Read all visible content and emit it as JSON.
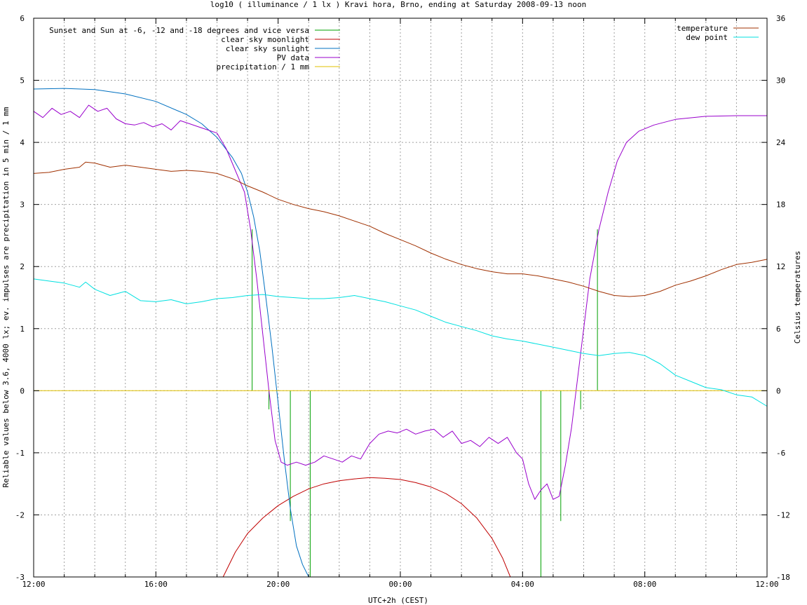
{
  "chart_data": {
    "type": "line",
    "title": "log10 ( illuminance / 1 lx ) Kravi hora, Brno, ending at Saturday 2008-09-13 noon",
    "xlabel": "UTC+2h (CEST)",
    "ylabel": "Reliable values below 3.6, 4000 lx; ev. impulses are precipitation in 5 min / 1 mm",
    "y2label": "Celsius temperatures",
    "x_unit": "hours since 12:00",
    "xlim": [
      0,
      24
    ],
    "ylim": [
      -3,
      6
    ],
    "y2lim": [
      -18,
      36
    ],
    "grid": true,
    "x_ticks": [
      {
        "x": 0,
        "label": "12:00"
      },
      {
        "x": 4,
        "label": "16:00"
      },
      {
        "x": 8,
        "label": "20:00"
      },
      {
        "x": 12,
        "label": "00:00"
      },
      {
        "x": 16,
        "label": "04:00"
      },
      {
        "x": 20,
        "label": "08:00"
      },
      {
        "x": 24,
        "label": "12:00"
      }
    ],
    "y_ticks": [
      {
        "v": -3,
        "label": "-3"
      },
      {
        "v": -2,
        "label": "-2"
      },
      {
        "v": -1,
        "label": "-1"
      },
      {
        "v": 0,
        "label": "0"
      },
      {
        "v": 1,
        "label": "1"
      },
      {
        "v": 2,
        "label": "2"
      },
      {
        "v": 3,
        "label": "3"
      },
      {
        "v": 4,
        "label": "4"
      },
      {
        "v": 5,
        "label": "5"
      },
      {
        "v": 6,
        "label": "6"
      }
    ],
    "y2_ticks": [
      {
        "v": -18,
        "label": "-18"
      },
      {
        "v": -12,
        "label": "-12"
      },
      {
        "v": -6,
        "label": "-6"
      },
      {
        "v": 0,
        "label": "0"
      },
      {
        "v": 6,
        "label": "6"
      },
      {
        "v": 12,
        "label": "12"
      },
      {
        "v": 18,
        "label": "18"
      },
      {
        "v": 24,
        "label": "24"
      },
      {
        "v": 30,
        "label": "30"
      },
      {
        "v": 36,
        "label": "36"
      }
    ],
    "series": [
      {
        "name": "Sunset and Sun at -6, -12 and -18 degrees and vice versa",
        "color": "#00a000",
        "kind": "impulse",
        "axis": "y",
        "points": [
          {
            "x": 7.15,
            "y": 2.6
          },
          {
            "x": 7.7,
            "y": -0.3
          },
          {
            "x": 8.4,
            "y": -2.1
          },
          {
            "x": 9.05,
            "y": -3.0
          },
          {
            "x": 16.6,
            "y": -3.0
          },
          {
            "x": 17.25,
            "y": -2.1
          },
          {
            "x": 17.9,
            "y": -0.3
          },
          {
            "x": 18.45,
            "y": 2.6
          }
        ]
      },
      {
        "name": "clear sky moonlight",
        "color": "#c00000",
        "kind": "line",
        "axis": "y",
        "points": [
          [
            6.2,
            -3.0
          ],
          [
            6.6,
            -2.6
          ],
          [
            7.0,
            -2.3
          ],
          [
            7.5,
            -2.05
          ],
          [
            8.0,
            -1.85
          ],
          [
            8.5,
            -1.7
          ],
          [
            9.0,
            -1.58
          ],
          [
            9.5,
            -1.5
          ],
          [
            10.0,
            -1.45
          ],
          [
            10.5,
            -1.42
          ],
          [
            11.0,
            -1.4
          ],
          [
            11.5,
            -1.41
          ],
          [
            12.0,
            -1.43
          ],
          [
            12.5,
            -1.48
          ],
          [
            13.0,
            -1.55
          ],
          [
            13.5,
            -1.66
          ],
          [
            14.0,
            -1.82
          ],
          [
            14.5,
            -2.05
          ],
          [
            15.0,
            -2.38
          ],
          [
            15.35,
            -2.7
          ],
          [
            15.6,
            -3.0
          ]
        ]
      },
      {
        "name": "clear sky sunlight",
        "color": "#0070c0",
        "kind": "line",
        "axis": "y",
        "points": [
          [
            0.0,
            4.86
          ],
          [
            1.0,
            4.87
          ],
          [
            2.0,
            4.85
          ],
          [
            3.0,
            4.78
          ],
          [
            4.0,
            4.66
          ],
          [
            5.0,
            4.45
          ],
          [
            5.5,
            4.3
          ],
          [
            6.0,
            4.08
          ],
          [
            6.5,
            3.76
          ],
          [
            6.8,
            3.5
          ],
          [
            7.0,
            3.2
          ],
          [
            7.2,
            2.8
          ],
          [
            7.4,
            2.25
          ],
          [
            7.6,
            1.5
          ],
          [
            7.8,
            0.7
          ],
          [
            8.0,
            -0.2
          ],
          [
            8.2,
            -1.1
          ],
          [
            8.4,
            -1.9
          ],
          [
            8.6,
            -2.5
          ],
          [
            8.8,
            -2.8
          ],
          [
            9.0,
            -3.0
          ]
        ]
      },
      {
        "name": "PV data",
        "color": "#9900cc",
        "kind": "line",
        "axis": "y",
        "points": [
          [
            0.0,
            4.5
          ],
          [
            0.3,
            4.4
          ],
          [
            0.6,
            4.55
          ],
          [
            0.9,
            4.45
          ],
          [
            1.2,
            4.5
          ],
          [
            1.5,
            4.4
          ],
          [
            1.8,
            4.6
          ],
          [
            2.1,
            4.5
          ],
          [
            2.4,
            4.55
          ],
          [
            2.7,
            4.38
          ],
          [
            3.0,
            4.3
          ],
          [
            3.3,
            4.28
          ],
          [
            3.6,
            4.32
          ],
          [
            3.9,
            4.25
          ],
          [
            4.2,
            4.3
          ],
          [
            4.5,
            4.2
          ],
          [
            4.8,
            4.35
          ],
          [
            5.1,
            4.3
          ],
          [
            5.4,
            4.25
          ],
          [
            5.7,
            4.2
          ],
          [
            6.0,
            4.15
          ],
          [
            6.3,
            3.9
          ],
          [
            6.6,
            3.55
          ],
          [
            6.9,
            3.2
          ],
          [
            7.1,
            2.6
          ],
          [
            7.3,
            1.8
          ],
          [
            7.5,
            0.9
          ],
          [
            7.7,
            0.0
          ],
          [
            7.9,
            -0.8
          ],
          [
            8.1,
            -1.15
          ],
          [
            8.3,
            -1.2
          ],
          [
            8.6,
            -1.15
          ],
          [
            8.9,
            -1.2
          ],
          [
            9.2,
            -1.15
          ],
          [
            9.5,
            -1.05
          ],
          [
            9.8,
            -1.1
          ],
          [
            10.1,
            -1.15
          ],
          [
            10.4,
            -1.05
          ],
          [
            10.7,
            -1.1
          ],
          [
            11.0,
            -0.85
          ],
          [
            11.3,
            -0.7
          ],
          [
            11.6,
            -0.65
          ],
          [
            11.9,
            -0.68
          ],
          [
            12.2,
            -0.62
          ],
          [
            12.5,
            -0.7
          ],
          [
            12.8,
            -0.65
          ],
          [
            13.1,
            -0.62
          ],
          [
            13.4,
            -0.75
          ],
          [
            13.7,
            -0.65
          ],
          [
            14.0,
            -0.85
          ],
          [
            14.3,
            -0.8
          ],
          [
            14.6,
            -0.9
          ],
          [
            14.9,
            -0.75
          ],
          [
            15.2,
            -0.85
          ],
          [
            15.5,
            -0.75
          ],
          [
            15.8,
            -1.0
          ],
          [
            16.0,
            -1.1
          ],
          [
            16.2,
            -1.5
          ],
          [
            16.4,
            -1.75
          ],
          [
            16.6,
            -1.6
          ],
          [
            16.8,
            -1.5
          ],
          [
            17.0,
            -1.75
          ],
          [
            17.2,
            -1.7
          ],
          [
            17.4,
            -1.2
          ],
          [
            17.6,
            -0.6
          ],
          [
            17.8,
            0.2
          ],
          [
            18.0,
            1.0
          ],
          [
            18.2,
            1.8
          ],
          [
            18.5,
            2.6
          ],
          [
            18.8,
            3.2
          ],
          [
            19.1,
            3.7
          ],
          [
            19.4,
            4.0
          ],
          [
            19.8,
            4.18
          ],
          [
            20.3,
            4.28
          ],
          [
            21.0,
            4.37
          ],
          [
            22.0,
            4.42
          ],
          [
            23.0,
            4.43
          ],
          [
            24.0,
            4.43
          ]
        ]
      },
      {
        "name": "precipitation / 1 mm",
        "color": "#e0c000",
        "kind": "line",
        "axis": "y",
        "points": [
          [
            0.0,
            0.0
          ],
          [
            24.0,
            0.0
          ]
        ]
      },
      {
        "name": "temperature",
        "color": "#a03000",
        "kind": "line",
        "axis": "y2",
        "points": [
          [
            0.0,
            21.0
          ],
          [
            0.5,
            21.1
          ],
          [
            1.0,
            21.4
          ],
          [
            1.5,
            21.6
          ],
          [
            1.7,
            22.1
          ],
          [
            2.0,
            22.0
          ],
          [
            2.5,
            21.6
          ],
          [
            3.0,
            21.8
          ],
          [
            3.5,
            21.6
          ],
          [
            4.0,
            21.4
          ],
          [
            4.5,
            21.2
          ],
          [
            5.0,
            21.3
          ],
          [
            5.5,
            21.2
          ],
          [
            6.0,
            21.0
          ],
          [
            6.5,
            20.5
          ],
          [
            7.0,
            19.8
          ],
          [
            7.5,
            19.2
          ],
          [
            8.0,
            18.5
          ],
          [
            8.5,
            18.0
          ],
          [
            9.0,
            17.6
          ],
          [
            9.5,
            17.3
          ],
          [
            10.0,
            16.9
          ],
          [
            10.5,
            16.4
          ],
          [
            11.0,
            15.9
          ],
          [
            11.5,
            15.2
          ],
          [
            12.0,
            14.6
          ],
          [
            12.5,
            14.0
          ],
          [
            13.0,
            13.3
          ],
          [
            13.5,
            12.7
          ],
          [
            14.0,
            12.2
          ],
          [
            14.5,
            11.8
          ],
          [
            15.0,
            11.5
          ],
          [
            15.5,
            11.3
          ],
          [
            16.0,
            11.3
          ],
          [
            16.5,
            11.1
          ],
          [
            17.0,
            10.8
          ],
          [
            17.5,
            10.5
          ],
          [
            18.0,
            10.1
          ],
          [
            18.5,
            9.6
          ],
          [
            19.0,
            9.2
          ],
          [
            19.5,
            9.1
          ],
          [
            20.0,
            9.2
          ],
          [
            20.5,
            9.6
          ],
          [
            21.0,
            10.2
          ],
          [
            21.5,
            10.6
          ],
          [
            22.0,
            11.1
          ],
          [
            22.5,
            11.7
          ],
          [
            23.0,
            12.2
          ],
          [
            23.5,
            12.4
          ],
          [
            24.0,
            12.7
          ]
        ]
      },
      {
        "name": "dew point",
        "color": "#00e0e0",
        "kind": "line",
        "axis": "y2",
        "points": [
          [
            0.0,
            10.8
          ],
          [
            0.5,
            10.6
          ],
          [
            1.0,
            10.4
          ],
          [
            1.5,
            10.0
          ],
          [
            1.7,
            10.5
          ],
          [
            2.0,
            9.8
          ],
          [
            2.5,
            9.2
          ],
          [
            3.0,
            9.6
          ],
          [
            3.5,
            8.7
          ],
          [
            4.0,
            8.6
          ],
          [
            4.5,
            8.8
          ],
          [
            5.0,
            8.4
          ],
          [
            5.5,
            8.6
          ],
          [
            6.0,
            8.9
          ],
          [
            6.5,
            9.0
          ],
          [
            7.0,
            9.2
          ],
          [
            7.5,
            9.3
          ],
          [
            8.0,
            9.1
          ],
          [
            8.5,
            9.0
          ],
          [
            9.0,
            8.9
          ],
          [
            9.5,
            8.9
          ],
          [
            10.0,
            9.0
          ],
          [
            10.5,
            9.2
          ],
          [
            11.0,
            8.9
          ],
          [
            11.5,
            8.6
          ],
          [
            12.0,
            8.2
          ],
          [
            12.5,
            7.8
          ],
          [
            13.0,
            7.2
          ],
          [
            13.5,
            6.6
          ],
          [
            14.0,
            6.2
          ],
          [
            14.5,
            5.8
          ],
          [
            15.0,
            5.3
          ],
          [
            15.5,
            5.0
          ],
          [
            16.0,
            4.8
          ],
          [
            16.5,
            4.5
          ],
          [
            17.0,
            4.2
          ],
          [
            17.5,
            3.9
          ],
          [
            18.0,
            3.6
          ],
          [
            18.5,
            3.4
          ],
          [
            19.0,
            3.6
          ],
          [
            19.5,
            3.7
          ],
          [
            20.0,
            3.4
          ],
          [
            20.5,
            2.6
          ],
          [
            21.0,
            1.5
          ],
          [
            21.5,
            0.9
          ],
          [
            22.0,
            0.3
          ],
          [
            22.5,
            0.1
          ],
          [
            23.0,
            -0.4
          ],
          [
            23.5,
            -0.6
          ],
          [
            24.0,
            -1.5
          ]
        ]
      }
    ]
  }
}
